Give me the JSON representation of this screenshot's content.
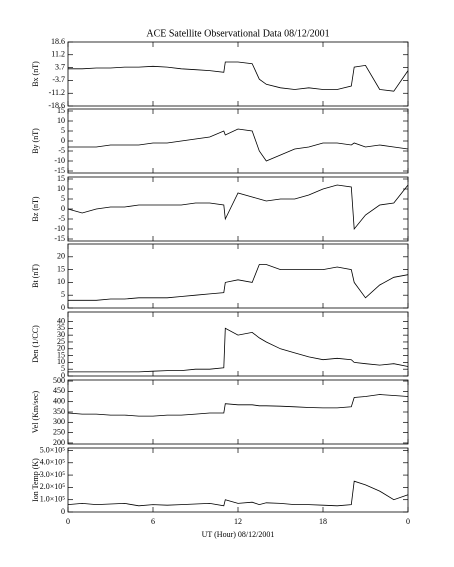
{
  "chart_data": [
    {
      "type": "line",
      "title": "ACE Satellite Observational Data  08/12/2001",
      "ylabel": "Bx (nT)",
      "x": [
        0,
        1,
        2,
        3,
        4,
        5,
        6,
        7,
        8,
        9,
        10,
        11,
        11.1,
        12,
        13,
        13.5,
        14,
        15,
        16,
        17,
        18,
        19,
        20,
        20.2,
        21,
        22,
        23,
        24
      ],
      "values": [
        3,
        3,
        3.5,
        3.5,
        4,
        4,
        4.5,
        4,
        3,
        2.5,
        2,
        1,
        7,
        7,
        6,
        -3,
        -6,
        -8,
        -9,
        -8,
        -9,
        -9,
        -7,
        4,
        5,
        -9,
        -10,
        2
      ],
      "color": "#000000",
      "xlim": [
        0,
        24
      ],
      "ylim": [
        -18.6,
        18.6
      ],
      "yticks": [
        -18.6,
        -11.2,
        -3.7,
        3.7,
        11.2,
        18.6
      ]
    },
    {
      "type": "line",
      "ylabel": "By (nT)",
      "x": [
        0,
        1,
        2,
        3,
        4,
        5,
        6,
        7,
        8,
        9,
        10,
        11,
        11.1,
        12,
        13,
        13.5,
        14,
        15,
        16,
        17,
        18,
        19,
        20,
        20.2,
        21,
        22,
        23,
        24
      ],
      "values": [
        -3,
        -3,
        -3,
        -2,
        -2,
        -2,
        -1,
        -1,
        0,
        1,
        2,
        5,
        3,
        6,
        5,
        -5,
        -10,
        -7,
        -4,
        -3,
        -1,
        -1,
        -2,
        -1,
        -3,
        -2,
        -3,
        -4
      ],
      "color": "#000000",
      "xlim": [
        0,
        24
      ],
      "ylim": [
        -16,
        16
      ],
      "yticks": [
        -15,
        -10,
        -5,
        0,
        5,
        10,
        15
      ]
    },
    {
      "type": "line",
      "ylabel": "Bz (nT)",
      "x": [
        0,
        1,
        2,
        3,
        4,
        5,
        6,
        7,
        8,
        9,
        10,
        11,
        11.1,
        12,
        13,
        13.5,
        14,
        15,
        16,
        17,
        18,
        19,
        20,
        20.2,
        21,
        22,
        23,
        24
      ],
      "values": [
        0,
        -2,
        0,
        1,
        1,
        2,
        2,
        2,
        2,
        3,
        3,
        2,
        -5,
        8,
        6,
        5,
        4,
        5,
        5,
        7,
        10,
        12,
        11,
        -10,
        -3,
        2,
        3,
        12
      ],
      "color": "#000000",
      "xlim": [
        0,
        24
      ],
      "ylim": [
        -16,
        16
      ],
      "yticks": [
        -15,
        -10,
        -5,
        0,
        5,
        10,
        15
      ]
    },
    {
      "type": "line",
      "ylabel": "Bt (nT)",
      "x": [
        0,
        1,
        2,
        3,
        4,
        5,
        6,
        7,
        8,
        9,
        10,
        11,
        11.1,
        12,
        13,
        13.5,
        14,
        15,
        16,
        17,
        18,
        19,
        20,
        20.2,
        21,
        22,
        23,
        24
      ],
      "values": [
        3,
        3,
        3,
        3.5,
        3.5,
        4,
        4,
        4,
        4.5,
        5,
        5.5,
        6,
        10,
        11,
        10,
        17,
        17,
        15,
        15,
        15,
        15,
        16,
        15,
        10,
        4,
        9,
        12,
        13
      ],
      "color": "#000000",
      "xlim": [
        0,
        24
      ],
      "ylim": [
        0,
        25
      ],
      "yticks": [
        0,
        5,
        10,
        15,
        20
      ]
    },
    {
      "type": "line",
      "ylabel": "Den (1/CC)",
      "x": [
        0,
        1,
        2,
        3,
        4,
        5,
        6,
        7,
        8,
        9,
        10,
        11,
        11.1,
        12,
        13,
        13.5,
        14,
        15,
        16,
        17,
        18,
        19,
        20,
        20.2,
        21,
        22,
        23,
        24
      ],
      "values": [
        3,
        3,
        3,
        3,
        3,
        3,
        3.5,
        4,
        4,
        5,
        5,
        6,
        35,
        30,
        32,
        28,
        25,
        20,
        17,
        14,
        12,
        13,
        12,
        10,
        9,
        8,
        9,
        7
      ],
      "color": "#000000",
      "xlim": [
        0,
        24
      ],
      "ylim": [
        0,
        47
      ],
      "yticks": [
        0,
        5,
        10,
        15,
        20,
        25,
        30,
        35,
        40
      ]
    },
    {
      "type": "line",
      "ylabel": "Vel (Km/sec)",
      "x": [
        0,
        1,
        2,
        3,
        4,
        5,
        6,
        7,
        8,
        9,
        10,
        11,
        11.1,
        12,
        13,
        13.5,
        14,
        15,
        16,
        17,
        18,
        19,
        20,
        20.2,
        21,
        22,
        23,
        24
      ],
      "values": [
        345,
        340,
        340,
        335,
        335,
        330,
        330,
        335,
        335,
        340,
        345,
        345,
        390,
        385,
        385,
        380,
        380,
        378,
        375,
        372,
        370,
        370,
        375,
        420,
        425,
        435,
        430,
        425
      ],
      "color": "#000000",
      "xlim": [
        0,
        24
      ],
      "ylim": [
        195,
        505
      ],
      "yticks": [
        200,
        250,
        300,
        350,
        400,
        450,
        500
      ]
    },
    {
      "type": "line",
      "ylabel": "Ion Temp (K)",
      "xlabel": "UT (Hour)  08/12/2001",
      "x": [
        0,
        1,
        2,
        3,
        4,
        5,
        6,
        7,
        8,
        9,
        10,
        11,
        11.1,
        12,
        13,
        13.5,
        14,
        15,
        16,
        17,
        18,
        19,
        20,
        20.2,
        21,
        22,
        23,
        24
      ],
      "values": [
        60000,
        70000,
        60000,
        65000,
        70000,
        50000,
        60000,
        55000,
        60000,
        65000,
        70000,
        50000,
        100000,
        70000,
        80000,
        60000,
        75000,
        70000,
        60000,
        60000,
        55000,
        50000,
        60000,
        250000,
        220000,
        170000,
        100000,
        140000
      ],
      "color": "#000000",
      "xlim": [
        0,
        24
      ],
      "ylim": [
        0,
        520000
      ],
      "yticks": [
        0,
        {
          "value": 100000,
          "label": "1.0×10⁵"
        },
        {
          "value": 200000,
          "label": "2.0×10⁵"
        },
        {
          "value": 300000,
          "label": "3.0×10⁵"
        },
        {
          "value": 400000,
          "label": "4.0×10⁵"
        },
        {
          "value": 500000,
          "label": "5.0×10⁵"
        }
      ],
      "xticks": [
        0,
        6,
        12,
        18,
        {
          "value": 24,
          "label": "0"
        }
      ]
    }
  ]
}
